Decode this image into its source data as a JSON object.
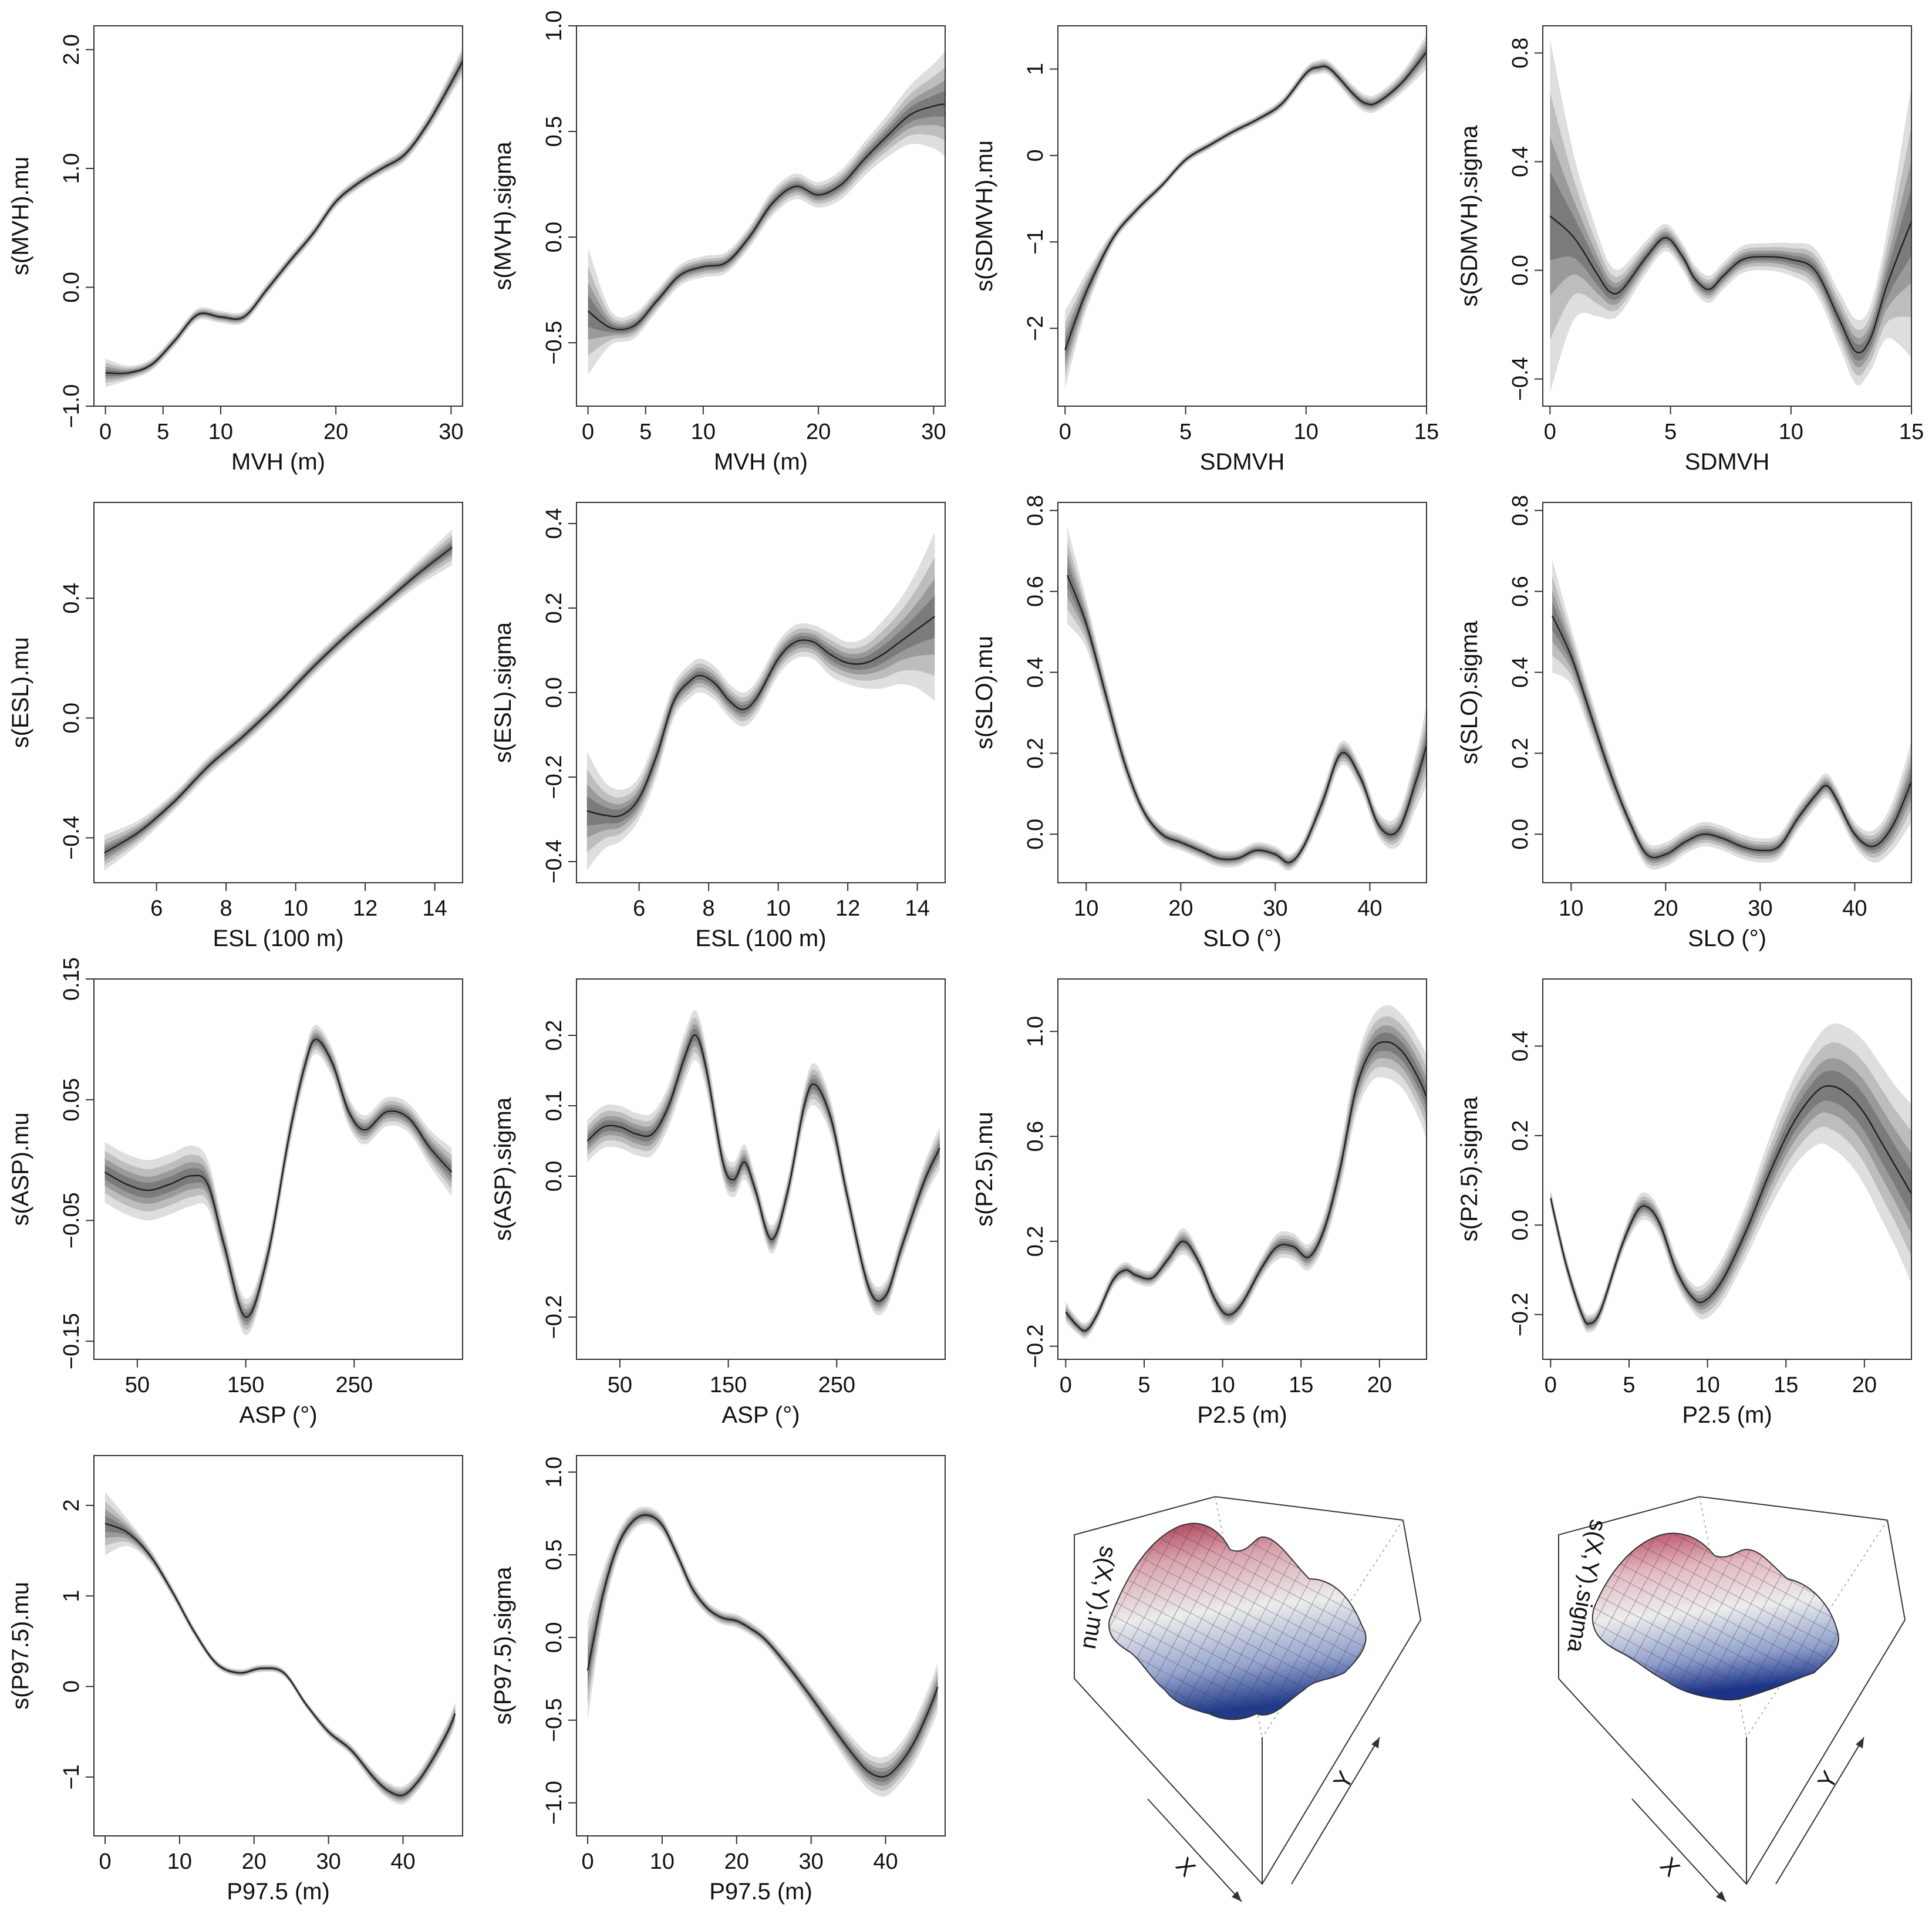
{
  "chart_data": [
    {
      "type": "line",
      "xlabel": "MVH (m)",
      "ylabel": "s(MVH).mu",
      "xlim": [
        -1,
        31
      ],
      "ylim": [
        -1.0,
        2.2
      ],
      "xticks": [
        0,
        5,
        10,
        20,
        30
      ],
      "yticks": [
        -1.0,
        0.0,
        1.0,
        2.0
      ],
      "ytick_labels": [
        "−1.0",
        "0.0",
        "1.0",
        "2.0"
      ],
      "x": [
        0,
        2,
        4,
        6,
        8,
        10,
        12,
        14,
        16,
        18,
        20,
        22,
        24,
        26,
        28,
        30,
        31
      ],
      "y": [
        -0.72,
        -0.72,
        -0.65,
        -0.45,
        -0.23,
        -0.25,
        -0.25,
        -0.02,
        0.22,
        0.45,
        0.72,
        0.88,
        1.0,
        1.12,
        1.38,
        1.72,
        1.9
      ],
      "band": [
        0.12,
        0.06,
        0.05,
        0.05,
        0.05,
        0.05,
        0.05,
        0.05,
        0.05,
        0.05,
        0.05,
        0.05,
        0.05,
        0.06,
        0.07,
        0.1,
        0.12
      ]
    },
    {
      "type": "line",
      "xlabel": "MVH (m)",
      "ylabel": "s(MVH).sigma",
      "xlim": [
        -1,
        31
      ],
      "ylim": [
        -0.8,
        1.0
      ],
      "xticks": [
        0,
        5,
        10,
        20,
        30
      ],
      "yticks": [
        -0.5,
        0.0,
        0.5,
        1.0
      ],
      "ytick_labels": [
        "−0.5",
        "0.0",
        "0.5",
        "1.0"
      ],
      "x": [
        0,
        2,
        4,
        6,
        8,
        10,
        12,
        14,
        16,
        18,
        20,
        22,
        24,
        26,
        28,
        30,
        31
      ],
      "y": [
        -0.35,
        -0.43,
        -0.42,
        -0.3,
        -0.18,
        -0.14,
        -0.12,
        0.0,
        0.16,
        0.24,
        0.2,
        0.25,
        0.37,
        0.48,
        0.58,
        0.62,
        0.63
      ],
      "band": [
        0.3,
        0.08,
        0.06,
        0.05,
        0.05,
        0.05,
        0.05,
        0.05,
        0.06,
        0.06,
        0.06,
        0.07,
        0.08,
        0.1,
        0.14,
        0.2,
        0.25
      ]
    },
    {
      "type": "line",
      "xlabel": "SDMVH",
      "ylabel": "s(SDMVH).mu",
      "xlim": [
        -0.3,
        15
      ],
      "ylim": [
        -2.9,
        1.5
      ],
      "xticks": [
        0,
        5,
        10,
        15
      ],
      "yticks": [
        -2,
        -1,
        0,
        1
      ],
      "ytick_labels": [
        "−2",
        "−1",
        "0",
        "1"
      ],
      "x": [
        0,
        0.5,
        1,
        2,
        3,
        4,
        5,
        6,
        7,
        8,
        9,
        10,
        10.5,
        11,
        12,
        12.5,
        13,
        14,
        15
      ],
      "y": [
        -2.25,
        -1.85,
        -1.5,
        -0.95,
        -0.62,
        -0.35,
        -0.05,
        0.12,
        0.28,
        0.42,
        0.6,
        0.95,
        1.02,
        1.0,
        0.7,
        0.6,
        0.62,
        0.85,
        1.2
      ],
      "band": [
        0.45,
        0.3,
        0.2,
        0.08,
        0.06,
        0.05,
        0.05,
        0.05,
        0.05,
        0.05,
        0.06,
        0.07,
        0.08,
        0.08,
        0.1,
        0.1,
        0.1,
        0.12,
        0.2
      ]
    },
    {
      "type": "line",
      "xlabel": "SDMVH",
      "ylabel": "s(SDMVH).sigma",
      "xlim": [
        -0.3,
        15
      ],
      "ylim": [
        -0.5,
        0.9
      ],
      "xticks": [
        0,
        5,
        10,
        15
      ],
      "yticks": [
        -0.4,
        0.0,
        0.4,
        0.8
      ],
      "ytick_labels": [
        "−0.4",
        "0.0",
        "0.4",
        "0.8"
      ],
      "x": [
        0,
        1,
        2,
        2.5,
        3,
        4,
        4.8,
        5.5,
        6,
        6.6,
        7.2,
        8,
        9,
        10,
        11,
        12,
        12.7,
        13.3,
        14,
        15
      ],
      "y": [
        0.2,
        0.12,
        -0.02,
        -0.08,
        -0.07,
        0.05,
        0.12,
        0.05,
        -0.03,
        -0.07,
        -0.02,
        0.04,
        0.05,
        0.04,
        0.0,
        -0.18,
        -0.3,
        -0.25,
        -0.05,
        0.18
      ],
      "band": [
        0.65,
        0.3,
        0.15,
        0.1,
        0.08,
        0.06,
        0.05,
        0.05,
        0.05,
        0.05,
        0.05,
        0.05,
        0.05,
        0.06,
        0.08,
        0.1,
        0.12,
        0.12,
        0.2,
        0.5
      ]
    },
    {
      "type": "line",
      "xlabel": "ESL (100 m)",
      "ylabel": "s(ESL).mu",
      "xlim": [
        4.2,
        14.8
      ],
      "ylim": [
        -0.55,
        0.72
      ],
      "xticks": [
        6,
        8,
        10,
        12,
        14
      ],
      "yticks": [
        -0.4,
        0.0,
        0.4
      ],
      "ytick_labels": [
        "−0.4",
        "0.0",
        "0.4"
      ],
      "x": [
        4.5,
        5.5,
        6.5,
        7.5,
        8.5,
        9.5,
        10.5,
        11.5,
        12.5,
        13.5,
        14.5
      ],
      "y": [
        -0.45,
        -0.38,
        -0.28,
        -0.16,
        -0.06,
        0.05,
        0.17,
        0.28,
        0.38,
        0.48,
        0.57
      ],
      "band": [
        0.06,
        0.04,
        0.03,
        0.03,
        0.03,
        0.03,
        0.03,
        0.03,
        0.03,
        0.04,
        0.06
      ]
    },
    {
      "type": "line",
      "xlabel": "ESL (100 m)",
      "ylabel": "s(ESL).sigma",
      "xlim": [
        4.2,
        14.8
      ],
      "ylim": [
        -0.45,
        0.45
      ],
      "xticks": [
        6,
        8,
        10,
        12,
        14
      ],
      "yticks": [
        -0.4,
        -0.2,
        0.0,
        0.2,
        0.4
      ],
      "ytick_labels": [
        "−0.4",
        "−0.2",
        "0.0",
        "0.2",
        "0.4"
      ],
      "x": [
        4.5,
        5,
        5.5,
        6,
        6.5,
        7,
        7.5,
        7.8,
        8.2,
        8.6,
        9,
        9.4,
        10,
        10.5,
        11,
        11.5,
        12,
        12.5,
        13,
        13.5,
        14,
        14.5
      ],
      "y": [
        -0.28,
        -0.29,
        -0.29,
        -0.25,
        -0.15,
        -0.02,
        0.03,
        0.04,
        0.02,
        -0.02,
        -0.04,
        -0.01,
        0.08,
        0.12,
        0.12,
        0.09,
        0.07,
        0.07,
        0.09,
        0.12,
        0.15,
        0.18
      ],
      "band": [
        0.14,
        0.08,
        0.06,
        0.05,
        0.05,
        0.04,
        0.04,
        0.04,
        0.04,
        0.04,
        0.04,
        0.04,
        0.04,
        0.04,
        0.04,
        0.05,
        0.05,
        0.06,
        0.08,
        0.1,
        0.14,
        0.2
      ]
    },
    {
      "type": "line",
      "xlabel": "SLO (°)",
      "ylabel": "s(SLO).mu",
      "xlim": [
        7,
        46
      ],
      "ylim": [
        -0.12,
        0.82
      ],
      "xticks": [
        10,
        20,
        30,
        40
      ],
      "yticks": [
        0.0,
        0.2,
        0.4,
        0.6,
        0.8
      ],
      "ytick_labels": [
        "0.0",
        "0.2",
        "0.4",
        "0.6",
        "0.8"
      ],
      "x": [
        8,
        10,
        12,
        14,
        16,
        18,
        20,
        22,
        24,
        26,
        28,
        30,
        31.5,
        33,
        35,
        37,
        39,
        41,
        43,
        45,
        46
      ],
      "y": [
        0.64,
        0.52,
        0.35,
        0.18,
        0.06,
        0.0,
        -0.02,
        -0.04,
        -0.06,
        -0.06,
        -0.04,
        -0.05,
        -0.07,
        -0.03,
        0.08,
        0.2,
        0.14,
        0.02,
        0.01,
        0.14,
        0.22
      ],
      "band": [
        0.12,
        0.06,
        0.04,
        0.03,
        0.02,
        0.02,
        0.02,
        0.02,
        0.02,
        0.02,
        0.02,
        0.02,
        0.02,
        0.02,
        0.03,
        0.03,
        0.03,
        0.03,
        0.04,
        0.07,
        0.1
      ]
    },
    {
      "type": "line",
      "xlabel": "SLO (°)",
      "ylabel": "s(SLO).sigma",
      "xlim": [
        7,
        46
      ],
      "ylim": [
        -0.12,
        0.82
      ],
      "xticks": [
        10,
        20,
        30,
        40
      ],
      "yticks": [
        0.0,
        0.2,
        0.4,
        0.6,
        0.8
      ],
      "ytick_labels": [
        "0.0",
        "0.2",
        "0.4",
        "0.6",
        "0.8"
      ],
      "x": [
        8,
        10,
        12,
        14,
        16,
        18,
        20,
        22,
        24,
        26,
        28,
        30,
        32,
        34,
        36,
        37,
        38,
        40,
        42,
        44,
        46
      ],
      "y": [
        0.54,
        0.44,
        0.3,
        0.16,
        0.04,
        -0.05,
        -0.05,
        -0.02,
        0.0,
        -0.01,
        -0.03,
        -0.04,
        -0.03,
        0.04,
        0.1,
        0.12,
        0.09,
        0.0,
        -0.03,
        0.02,
        0.13
      ],
      "band": [
        0.14,
        0.07,
        0.05,
        0.04,
        0.03,
        0.03,
        0.03,
        0.03,
        0.03,
        0.03,
        0.03,
        0.03,
        0.03,
        0.03,
        0.03,
        0.03,
        0.03,
        0.03,
        0.04,
        0.06,
        0.1
      ]
    },
    {
      "type": "line",
      "xlabel": "ASP (°)",
      "ylabel": "s(ASP).mu",
      "xlim": [
        10,
        350
      ],
      "ylim": [
        -0.165,
        0.15
      ],
      "xticks": [
        50,
        150,
        250
      ],
      "yticks": [
        -0.15,
        -0.05,
        0.05,
        0.15
      ],
      "ytick_labels": [
        "−0.15",
        "−0.05",
        "0.05",
        "0.15"
      ],
      "x": [
        20,
        40,
        60,
        80,
        100,
        115,
        130,
        150,
        170,
        190,
        205,
        215,
        230,
        245,
        260,
        280,
        300,
        320,
        340
      ],
      "y": [
        -0.01,
        -0.02,
        -0.025,
        -0.02,
        -0.013,
        -0.02,
        -0.07,
        -0.13,
        -0.08,
        0.02,
        0.08,
        0.1,
        0.08,
        0.04,
        0.025,
        0.04,
        0.035,
        0.01,
        -0.01
      ],
      "band": [
        0.025,
        0.025,
        0.025,
        0.025,
        0.025,
        0.02,
        0.015,
        0.015,
        0.012,
        0.012,
        0.012,
        0.012,
        0.012,
        0.012,
        0.012,
        0.012,
        0.012,
        0.015,
        0.02
      ]
    },
    {
      "type": "line",
      "xlabel": "ASP (°)",
      "ylabel": "s(ASP).sigma",
      "xlim": [
        10,
        350
      ],
      "ylim": [
        -0.26,
        0.28
      ],
      "xticks": [
        50,
        150,
        250
      ],
      "yticks": [
        -0.2,
        0.0,
        0.1,
        0.2
      ],
      "ytick_labels": [
        "−0.2",
        "0.0",
        "0.1",
        "0.2"
      ],
      "x": [
        20,
        35,
        50,
        65,
        80,
        95,
        110,
        120,
        130,
        145,
        155,
        165,
        175,
        190,
        205,
        220,
        230,
        245,
        260,
        280,
        295,
        310,
        330,
        345
      ],
      "y": [
        0.05,
        0.07,
        0.07,
        0.06,
        0.06,
        0.1,
        0.17,
        0.2,
        0.15,
        0.02,
        -0.005,
        0.02,
        -0.02,
        -0.09,
        -0.02,
        0.1,
        0.13,
        0.08,
        -0.03,
        -0.16,
        -0.17,
        -0.1,
        -0.01,
        0.04
      ],
      "band": [
        0.03,
        0.03,
        0.03,
        0.03,
        0.03,
        0.03,
        0.035,
        0.035,
        0.03,
        0.025,
        0.025,
        0.025,
        0.02,
        0.02,
        0.02,
        0.025,
        0.03,
        0.025,
        0.02,
        0.02,
        0.02,
        0.02,
        0.025,
        0.03
      ]
    },
    {
      "type": "line",
      "xlabel": "P2.5 (m)",
      "ylabel": "s(P2.5).mu",
      "xlim": [
        -0.5,
        23
      ],
      "ylim": [
        -0.25,
        1.2
      ],
      "xticks": [
        0,
        5,
        10,
        15,
        20
      ],
      "yticks": [
        -0.2,
        0.2,
        0.6,
        1.0
      ],
      "ytick_labels": [
        "−0.2",
        "0.2",
        "0.6",
        "1.0"
      ],
      "x": [
        0,
        0.7,
        1.3,
        2,
        3,
        3.8,
        4.5,
        5.5,
        6.5,
        7.5,
        8.5,
        9.5,
        10.3,
        11.2,
        12.5,
        13.5,
        14.5,
        15.5,
        16.5,
        17.5,
        18.5,
        19.5,
        20.5,
        21.5,
        22.5,
        23
      ],
      "y": [
        -0.07,
        -0.12,
        -0.14,
        -0.08,
        0.05,
        0.09,
        0.07,
        0.06,
        0.13,
        0.2,
        0.12,
        -0.02,
        -0.08,
        -0.04,
        0.1,
        0.18,
        0.18,
        0.14,
        0.25,
        0.48,
        0.78,
        0.93,
        0.96,
        0.92,
        0.82,
        0.75
      ],
      "band": [
        0.04,
        0.03,
        0.03,
        0.03,
        0.03,
        0.03,
        0.03,
        0.03,
        0.04,
        0.05,
        0.04,
        0.04,
        0.04,
        0.04,
        0.04,
        0.05,
        0.05,
        0.05,
        0.06,
        0.08,
        0.1,
        0.12,
        0.14,
        0.14,
        0.15,
        0.16
      ]
    },
    {
      "type": "line",
      "xlabel": "P2.5 (m)",
      "ylabel": "s(P2.5).sigma",
      "xlim": [
        -0.5,
        23
      ],
      "ylim": [
        -0.3,
        0.55
      ],
      "xticks": [
        0,
        5,
        10,
        15,
        20
      ],
      "yticks": [
        -0.2,
        0.0,
        0.2,
        0.4
      ],
      "ytick_labels": [
        "−0.2",
        "0.0",
        "0.2",
        "0.4"
      ],
      "x": [
        0,
        1,
        2,
        2.5,
        3.2,
        4.5,
        5.5,
        6.2,
        7,
        8,
        9,
        9.8,
        11,
        12.5,
        14,
        15.5,
        17,
        18,
        19,
        20,
        21,
        22,
        23
      ],
      "y": [
        0.06,
        -0.09,
        -0.2,
        -0.22,
        -0.19,
        -0.05,
        0.03,
        0.04,
        0.0,
        -0.1,
        -0.16,
        -0.17,
        -0.12,
        -0.01,
        0.12,
        0.23,
        0.3,
        0.31,
        0.29,
        0.25,
        0.19,
        0.13,
        0.07
      ],
      "band": [
        0.02,
        0.02,
        0.02,
        0.02,
        0.02,
        0.02,
        0.03,
        0.03,
        0.03,
        0.03,
        0.03,
        0.04,
        0.05,
        0.06,
        0.08,
        0.1,
        0.12,
        0.14,
        0.15,
        0.16,
        0.17,
        0.18,
        0.2
      ]
    },
    {
      "type": "line",
      "xlabel": "P97.5 (m)",
      "ylabel": "s(P97.5).mu",
      "xlim": [
        -1.5,
        48
      ],
      "ylim": [
        -1.65,
        2.55
      ],
      "xticks": [
        0,
        10,
        20,
        30,
        40
      ],
      "yticks": [
        -1,
        0,
        1,
        2
      ],
      "ytick_labels": [
        "−1",
        "0",
        "1",
        "2"
      ],
      "x": [
        0,
        3,
        6,
        9,
        12,
        15,
        18,
        21,
        24,
        27,
        30,
        33,
        36,
        38,
        40,
        42,
        44,
        46,
        47
      ],
      "y": [
        1.8,
        1.7,
        1.45,
        1.05,
        0.6,
        0.25,
        0.15,
        0.2,
        0.15,
        -0.2,
        -0.5,
        -0.7,
        -1.0,
        -1.15,
        -1.2,
        -1.05,
        -0.8,
        -0.5,
        -0.3
      ],
      "band": [
        0.35,
        0.15,
        0.08,
        0.06,
        0.05,
        0.04,
        0.04,
        0.04,
        0.04,
        0.04,
        0.05,
        0.06,
        0.08,
        0.09,
        0.1,
        0.1,
        0.11,
        0.12,
        0.13
      ]
    },
    {
      "type": "line",
      "xlabel": "P97.5 (m)",
      "ylabel": "s(P97.5).sigma",
      "xlim": [
        -1.5,
        48
      ],
      "ylim": [
        -1.2,
        1.1
      ],
      "xticks": [
        0,
        10,
        20,
        30,
        40
      ],
      "yticks": [
        -1.0,
        -0.5,
        0.0,
        0.5,
        1.0
      ],
      "ytick_labels": [
        "−1.0",
        "−0.5",
        "0.0",
        "0.5",
        "1.0"
      ],
      "x": [
        0,
        2,
        4,
        6,
        8,
        10,
        12,
        14,
        16,
        18,
        20,
        22,
        24,
        27,
        30,
        33,
        36,
        38,
        40,
        42,
        44,
        46,
        47
      ],
      "y": [
        -0.2,
        0.25,
        0.55,
        0.7,
        0.74,
        0.68,
        0.5,
        0.3,
        0.18,
        0.12,
        0.1,
        0.05,
        -0.02,
        -0.18,
        -0.36,
        -0.55,
        -0.73,
        -0.82,
        -0.84,
        -0.76,
        -0.62,
        -0.42,
        -0.3
      ],
      "band": [
        0.3,
        0.15,
        0.08,
        0.06,
        0.05,
        0.05,
        0.05,
        0.05,
        0.04,
        0.04,
        0.04,
        0.04,
        0.04,
        0.05,
        0.06,
        0.08,
        0.1,
        0.11,
        0.12,
        0.12,
        0.13,
        0.14,
        0.15
      ]
    },
    {
      "type": "surface",
      "zlabel": "s(X,Y).mu",
      "xlabel": "X",
      "ylabel": "Y"
    },
    {
      "type": "surface",
      "zlabel": "s(X,Y).sigma",
      "xlabel": "X",
      "ylabel": "Y"
    }
  ]
}
